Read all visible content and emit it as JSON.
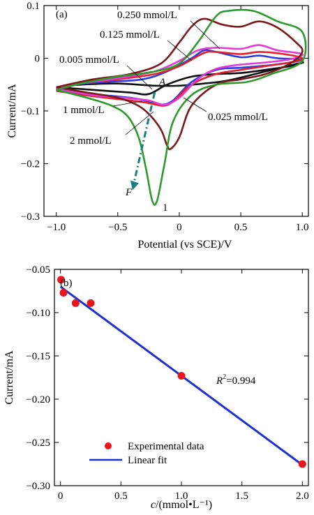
{
  "colors": {
    "c0005": "#111111",
    "c0025": "#2b3de0",
    "c0125": "#e4202a",
    "c0250": "#e23bd6",
    "c1": "#7a1a1a",
    "c2": "#2e9a2e",
    "arrow": "#1b7f7f",
    "fit": "#1f2fd0",
    "points": "#e8151b"
  },
  "chart_data": [
    {
      "type": "line",
      "panel_label": "(a)",
      "xlabel": "Potential (vs SCE)/V",
      "ylabel": "Current/mA",
      "xlim": [
        -1.1,
        1.05
      ],
      "ylim": [
        -0.3,
        0.1
      ],
      "xticks": [
        -1.0,
        -0.5,
        0,
        0.5,
        1.0
      ],
      "xtick_labels": [
        "−1.0",
        "−0.5",
        "0",
        "0.5",
        "1.0"
      ],
      "yticks": [
        0.1,
        0,
        -0.1,
        -0.2,
        -0.3
      ],
      "ytick_labels": [
        "0.1",
        "0",
        "−0.1",
        "−0.2",
        "−0.3"
      ],
      "series_labels": [
        "0.005 mmol/L",
        "0.025 mmol/L",
        "0.125 mmol/L",
        "0.250 mmol/L",
        "1 mmol/L",
        "2 mmol/L"
      ],
      "series": [
        {
          "name": "0.005 mmol/L",
          "color_key": "c0005",
          "forward": [
            [
              -1.0,
              -0.055
            ],
            [
              -0.7,
              -0.06
            ],
            [
              -0.4,
              -0.065
            ],
            [
              -0.25,
              -0.068
            ],
            [
              -0.1,
              -0.05
            ],
            [
              0.1,
              -0.035
            ],
            [
              0.3,
              -0.03
            ],
            [
              0.5,
              -0.028
            ],
            [
              0.7,
              -0.022
            ],
            [
              0.9,
              -0.015
            ],
            [
              1.0,
              -0.008
            ]
          ],
          "reverse": [
            [
              1.0,
              -0.008
            ],
            [
              0.7,
              -0.025
            ],
            [
              0.4,
              -0.042
            ],
            [
              0.2,
              -0.048
            ],
            [
              0,
              -0.052
            ],
            [
              -0.2,
              -0.052
            ],
            [
              -0.5,
              -0.048
            ],
            [
              -0.8,
              -0.05
            ],
            [
              -1.0,
              -0.055
            ]
          ]
        },
        {
          "name": "0.025 mmol/L",
          "color_key": "c0025",
          "forward": [
            [
              -1.0,
              -0.06
            ],
            [
              -0.7,
              -0.068
            ],
            [
              -0.4,
              -0.075
            ],
            [
              -0.25,
              -0.082
            ],
            [
              -0.15,
              -0.088
            ],
            [
              -0.05,
              -0.08
            ],
            [
              0.1,
              -0.045
            ],
            [
              0.3,
              -0.022
            ],
            [
              0.5,
              -0.018
            ],
            [
              0.7,
              -0.014
            ],
            [
              0.9,
              -0.008
            ],
            [
              1.0,
              -0.002
            ]
          ],
          "reverse": [
            [
              1.0,
              -0.002
            ],
            [
              0.8,
              0.0
            ],
            [
              0.65,
              0.005
            ],
            [
              0.5,
              0.002
            ],
            [
              0.3,
              0.012
            ],
            [
              0.2,
              0.015
            ],
            [
              0.1,
              0.0
            ],
            [
              -0.1,
              -0.025
            ],
            [
              -0.3,
              -0.04
            ],
            [
              -0.6,
              -0.045
            ],
            [
              -0.85,
              -0.05
            ],
            [
              -1.0,
              -0.06
            ]
          ]
        },
        {
          "name": "0.125 mmol/L",
          "color_key": "c0125",
          "forward": [
            [
              -1.0,
              -0.062
            ],
            [
              -0.7,
              -0.072
            ],
            [
              -0.4,
              -0.08
            ],
            [
              -0.25,
              -0.085
            ],
            [
              -0.13,
              -0.09
            ],
            [
              -0.05,
              -0.082
            ],
            [
              0.1,
              -0.05
            ],
            [
              0.3,
              -0.03
            ],
            [
              0.5,
              -0.022
            ],
            [
              0.7,
              -0.015
            ],
            [
              0.9,
              -0.008
            ],
            [
              1.0,
              0.0
            ]
          ],
          "reverse": [
            [
              1.0,
              0.0
            ],
            [
              0.85,
              0.008
            ],
            [
              0.65,
              0.012
            ],
            [
              0.5,
              0.008
            ],
            [
              0.3,
              0.012
            ],
            [
              0.2,
              0.01
            ],
            [
              0.0,
              -0.015
            ],
            [
              -0.2,
              -0.03
            ],
            [
              -0.5,
              -0.04
            ],
            [
              -0.8,
              -0.048
            ],
            [
              -1.0,
              -0.062
            ]
          ]
        },
        {
          "name": "0.250 mmol/L",
          "color_key": "c0250",
          "forward": [
            [
              -1.0,
              -0.058
            ],
            [
              -0.7,
              -0.07
            ],
            [
              -0.4,
              -0.076
            ],
            [
              -0.25,
              -0.08
            ],
            [
              -0.12,
              -0.088
            ],
            [
              0.0,
              -0.075
            ],
            [
              0.15,
              -0.04
            ],
            [
              0.3,
              -0.02
            ],
            [
              0.5,
              -0.012
            ],
            [
              0.7,
              -0.008
            ],
            [
              0.9,
              -0.002
            ],
            [
              1.0,
              0.008
            ]
          ],
          "reverse": [
            [
              1.0,
              0.008
            ],
            [
              0.8,
              0.015
            ],
            [
              0.65,
              0.025
            ],
            [
              0.5,
              0.018
            ],
            [
              0.3,
              0.02
            ],
            [
              0.15,
              0.015
            ],
            [
              0.0,
              -0.005
            ],
            [
              -0.2,
              -0.025
            ],
            [
              -0.5,
              -0.038
            ],
            [
              -0.8,
              -0.048
            ],
            [
              -1.0,
              -0.058
            ]
          ]
        },
        {
          "name": "1 mmol/L",
          "color_key": "c1",
          "forward": [
            [
              -1.0,
              -0.055
            ],
            [
              -0.75,
              -0.065
            ],
            [
              -0.5,
              -0.075
            ],
            [
              -0.35,
              -0.088
            ],
            [
              -0.25,
              -0.105
            ],
            [
              -0.15,
              -0.135
            ],
            [
              -0.1,
              -0.165
            ],
            [
              -0.07,
              -0.172
            ],
            [
              0.0,
              -0.15
            ],
            [
              0.1,
              -0.09
            ],
            [
              0.3,
              -0.05
            ],
            [
              0.5,
              -0.04
            ],
            [
              0.7,
              -0.03
            ],
            [
              0.9,
              -0.01
            ],
            [
              1.0,
              0.012
            ]
          ],
          "reverse": [
            [
              1.0,
              0.012
            ],
            [
              0.95,
              0.03
            ],
            [
              0.8,
              0.058
            ],
            [
              0.65,
              0.07
            ],
            [
              0.5,
              0.06
            ],
            [
              0.35,
              0.064
            ],
            [
              0.2,
              0.075
            ],
            [
              0.1,
              0.06
            ],
            [
              0.0,
              0.03
            ],
            [
              -0.15,
              -0.01
            ],
            [
              -0.4,
              -0.03
            ],
            [
              -0.7,
              -0.04
            ],
            [
              -1.0,
              -0.055
            ]
          ]
        },
        {
          "name": "2 mmol/L",
          "color_key": "c2",
          "forward": [
            [
              -1.0,
              -0.06
            ],
            [
              -0.75,
              -0.075
            ],
            [
              -0.55,
              -0.09
            ],
            [
              -0.42,
              -0.11
            ],
            [
              -0.33,
              -0.15
            ],
            [
              -0.27,
              -0.21
            ],
            [
              -0.22,
              -0.27
            ],
            [
              -0.18,
              -0.27
            ],
            [
              -0.12,
              -0.2
            ],
            [
              -0.05,
              -0.12
            ],
            [
              0.1,
              -0.07
            ],
            [
              0.3,
              -0.05
            ],
            [
              0.55,
              -0.045
            ],
            [
              0.75,
              -0.03
            ],
            [
              1.0,
              -0.005
            ]
          ],
          "reverse": [
            [
              1.0,
              -0.005
            ],
            [
              1.0,
              0.05
            ],
            [
              0.8,
              0.07
            ],
            [
              0.6,
              0.09
            ],
            [
              0.4,
              0.09
            ],
            [
              0.3,
              0.08
            ],
            [
              0.15,
              0.03
            ],
            [
              0.0,
              -0.01
            ],
            [
              -0.2,
              -0.025
            ],
            [
              -0.5,
              -0.035
            ],
            [
              -0.8,
              -0.048
            ],
            [
              -1.0,
              -0.06
            ]
          ]
        }
      ],
      "annotations": {
        "peak_label": "1",
        "arrow_start": "A",
        "arrow_end": "F"
      }
    },
    {
      "type": "scatter",
      "panel_label": "(b)",
      "xlabel_italic": "c",
      "xlabel_rest": "/(mmol•L⁻¹)",
      "ylabel": "Current/mA",
      "xlim": [
        -0.05,
        2.05
      ],
      "ylim": [
        -0.3,
        -0.05
      ],
      "xticks": [
        0,
        0.5,
        1.0,
        1.5,
        2.0
      ],
      "xtick_labels": [
        "0",
        "0.5",
        "1.0",
        "1.5",
        "2.0"
      ],
      "yticks": [
        -0.05,
        -0.1,
        -0.15,
        -0.2,
        -0.25,
        -0.3
      ],
      "ytick_labels": [
        "−0.05",
        "−0.10",
        "−0.15",
        "−0.20",
        "−0.25",
        "−0.30"
      ],
      "points": [
        [
          0.005,
          -0.062
        ],
        [
          0.025,
          -0.077
        ],
        [
          0.125,
          -0.089
        ],
        [
          0.25,
          -0.089
        ],
        [
          1.0,
          -0.173
        ],
        [
          2.0,
          -0.275
        ]
      ],
      "fit": {
        "x": [
          0,
          2.0
        ],
        "y": [
          -0.07,
          -0.276
        ]
      },
      "r2_label": "R",
      "r2_sup": "2",
      "r2_value": "=0.994",
      "legend": {
        "points": "Experimental data",
        "line": "Linear fit"
      }
    }
  ]
}
